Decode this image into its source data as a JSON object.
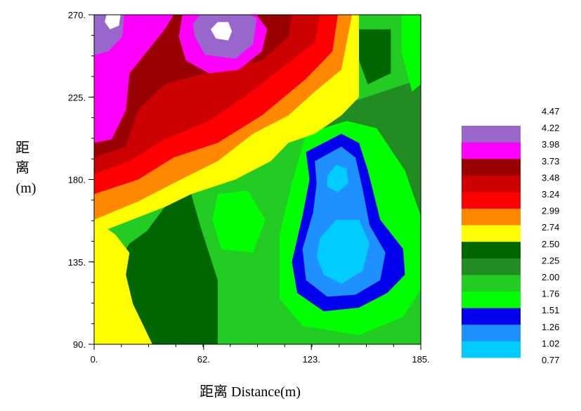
{
  "chart_data": {
    "type": "heatmap",
    "xlabel": "距离 Distance(m)",
    "ylabel_lines": [
      "距",
      "离",
      "(m)"
    ],
    "x_ticks": [
      "0.",
      "62.",
      "123.",
      "185."
    ],
    "x_tick_values": [
      0,
      62,
      123,
      185
    ],
    "y_ticks": [
      "90.",
      "135.",
      "180.",
      "225.",
      "270."
    ],
    "y_tick_values": [
      90,
      135,
      180,
      225,
      270
    ],
    "xlim": [
      0,
      185
    ],
    "ylim": [
      90,
      270
    ],
    "legend_levels": [
      "4.47",
      "4.22",
      "3.98",
      "3.73",
      "3.48",
      "3.24",
      "2.99",
      "2.74",
      "2.50",
      "2.25",
      "2.00",
      "1.76",
      "1.51",
      "1.26",
      "1.02",
      "0.77"
    ],
    "legend_colors": [
      "#9966cc",
      "#ff00ff",
      "#990000",
      "#cc0000",
      "#ff0000",
      "#ff8800",
      "#ffff00",
      "#006600",
      "#228b22",
      "#22cc22",
      "#00ff00",
      "#0000ee",
      "#1e90ff",
      "#00ccff",
      "#ffffff"
    ],
    "legend_placement": "right",
    "regions": [
      {
        "level": "1.76-2.00",
        "color": "#22cc22",
        "polygon": [
          [
            0,
            90
          ],
          [
            185,
            90
          ],
          [
            185,
            270
          ],
          [
            0,
            270
          ]
        ]
      },
      {
        "level": "2.00-2.25",
        "color": "#228b22",
        "polygon": [
          [
            145,
            222
          ],
          [
            185,
            235
          ],
          [
            185,
            155
          ],
          [
            176,
            135
          ],
          [
            170,
            110
          ],
          [
            150,
            100
          ],
          [
            140,
            108
          ],
          [
            140,
            150
          ],
          [
            132,
            175
          ],
          [
            125,
            205
          ]
        ]
      },
      {
        "level": "1.51-1.76",
        "color": "#00ff00",
        "polygon": [
          [
            174,
            270
          ],
          [
            185,
            270
          ],
          [
            185,
            232
          ],
          [
            180,
            228
          ],
          [
            174,
            250
          ]
        ]
      },
      {
        "level": "1.51-1.76",
        "color": "#00ff00",
        "polygon": [
          [
            120,
            205
          ],
          [
            143,
            212
          ],
          [
            160,
            208
          ],
          [
            176,
            185
          ],
          [
            185,
            160
          ],
          [
            185,
            120
          ],
          [
            175,
            105
          ],
          [
            150,
            95
          ],
          [
            118,
            100
          ],
          [
            105,
            115
          ],
          [
            105,
            150
          ],
          [
            112,
            178
          ]
        ]
      },
      {
        "level": "1.51-1.76",
        "color": "#00ff00",
        "polygon": [
          [
            70,
            172
          ],
          [
            87,
            174
          ],
          [
            97,
            158
          ],
          [
            90,
            140
          ],
          [
            72,
            142
          ],
          [
            67,
            158
          ]
        ]
      },
      {
        "level": "2.25-2.50",
        "color": "#006600",
        "polygon": [
          [
            0,
            90
          ],
          [
            70,
            90
          ],
          [
            70,
            125
          ],
          [
            60,
            155
          ],
          [
            55,
            172
          ],
          [
            40,
            165
          ],
          [
            30,
            152
          ],
          [
            20,
            145
          ],
          [
            10,
            130
          ],
          [
            0,
            122
          ]
        ]
      },
      {
        "level": "2.25-2.50",
        "color": "#006600",
        "polygon": [
          [
            150,
            262
          ],
          [
            168,
            262
          ],
          [
            168,
            238
          ],
          [
            155,
            232
          ],
          [
            150,
            245
          ]
        ]
      },
      {
        "level": "2.50-2.74",
        "color": "#ffff00",
        "polygon": [
          [
            0,
            90
          ],
          [
            33,
            90
          ],
          [
            28,
            100
          ],
          [
            22,
            112
          ],
          [
            18,
            128
          ],
          [
            20,
            140
          ],
          [
            12,
            150
          ],
          [
            0,
            158
          ]
        ]
      },
      {
        "level": "2.50-2.74",
        "color": "#ffff00",
        "polygon": [
          [
            0,
            150
          ],
          [
            40,
            165
          ],
          [
            55,
            172
          ],
          [
            80,
            180
          ],
          [
            100,
            190
          ],
          [
            110,
            200
          ],
          [
            125,
            205
          ],
          [
            140,
            215
          ],
          [
            150,
            225
          ],
          [
            150,
            270
          ],
          [
            0,
            270
          ]
        ]
      },
      {
        "level": "2.74-2.99",
        "color": "#ff8800",
        "polygon": [
          [
            0,
            158
          ],
          [
            25,
            168
          ],
          [
            45,
            178
          ],
          [
            70,
            190
          ],
          [
            90,
            205
          ],
          [
            110,
            215
          ],
          [
            125,
            228
          ],
          [
            140,
            240
          ],
          [
            146,
            270
          ],
          [
            0,
            270
          ]
        ]
      },
      {
        "level": "2.99-3.24",
        "color": "#ff0000",
        "polygon": [
          [
            0,
            172
          ],
          [
            25,
            180
          ],
          [
            45,
            192
          ],
          [
            70,
            200
          ],
          [
            95,
            215
          ],
          [
            120,
            235
          ],
          [
            135,
            250
          ],
          [
            138,
            270
          ],
          [
            0,
            270
          ]
        ]
      },
      {
        "level": "3.24-3.48",
        "color": "#cc0000",
        "polygon": [
          [
            0,
            183
          ],
          [
            20,
            190
          ],
          [
            40,
            202
          ],
          [
            65,
            212
          ],
          [
            85,
            225
          ],
          [
            105,
            240
          ],
          [
            125,
            255
          ],
          [
            128,
            270
          ],
          [
            0,
            270
          ]
        ]
      },
      {
        "level": "3.48-3.73",
        "color": "#990000",
        "polygon": [
          [
            0,
            192
          ],
          [
            18,
            198
          ],
          [
            25,
            218
          ],
          [
            40,
            232
          ],
          [
            70,
            240
          ],
          [
            95,
            245
          ],
          [
            110,
            258
          ],
          [
            112,
            270
          ],
          [
            0,
            270
          ]
        ]
      },
      {
        "level": "3.73-3.98",
        "color": "#ff00ff",
        "polygon": [
          [
            0,
            200
          ],
          [
            10,
            202
          ],
          [
            18,
            218
          ],
          [
            20,
            238
          ],
          [
            30,
            250
          ],
          [
            40,
            262
          ],
          [
            45,
            270
          ],
          [
            0,
            270
          ]
        ]
      },
      {
        "level": "3.73-3.98",
        "color": "#ff00ff",
        "polygon": [
          [
            52,
            245
          ],
          [
            65,
            238
          ],
          [
            82,
            240
          ],
          [
            95,
            250
          ],
          [
            98,
            262
          ],
          [
            92,
            270
          ],
          [
            50,
            270
          ],
          [
            48,
            258
          ]
        ]
      },
      {
        "level": "3.98-4.22",
        "color": "#9966cc",
        "polygon": [
          [
            0,
            248
          ],
          [
            8,
            250
          ],
          [
            16,
            258
          ],
          [
            17,
            270
          ],
          [
            0,
            270
          ]
        ]
      },
      {
        "level": "3.98-4.22",
        "color": "#9966cc",
        "polygon": [
          [
            57,
            258
          ],
          [
            63,
            248
          ],
          [
            80,
            246
          ],
          [
            90,
            254
          ],
          [
            92,
            268
          ],
          [
            88,
            270
          ],
          [
            60,
            270
          ],
          [
            56,
            265
          ]
        ]
      },
      {
        "level": "4.22-4.47",
        "color": "#ffffff",
        "polygon": [
          [
            7,
            270
          ],
          [
            15,
            270
          ],
          [
            14,
            264
          ],
          [
            9,
            262
          ],
          [
            6,
            266
          ]
        ]
      },
      {
        "level": "4.22-4.47",
        "color": "#ffffff",
        "polygon": [
          [
            66,
            262
          ],
          [
            69,
            257
          ],
          [
            76,
            256
          ],
          [
            78,
            261
          ],
          [
            76,
            266
          ],
          [
            70,
            266
          ]
        ]
      },
      {
        "level": "1.26-1.51",
        "color": "#0000ee",
        "polygon": [
          [
            120,
            195
          ],
          [
            140,
            205
          ],
          [
            150,
            200
          ],
          [
            155,
            185
          ],
          [
            162,
            158
          ],
          [
            175,
            142
          ],
          [
            176,
            128
          ],
          [
            166,
            118
          ],
          [
            150,
            110
          ],
          [
            130,
            108
          ],
          [
            115,
            118
          ],
          [
            112,
            135
          ],
          [
            118,
            160
          ],
          [
            122,
            180
          ]
        ]
      },
      {
        "level": "1.02-1.26",
        "color": "#1e90ff",
        "polygon": [
          [
            125,
            190
          ],
          [
            140,
            198
          ],
          [
            148,
            192
          ],
          [
            152,
            175
          ],
          [
            156,
            155
          ],
          [
            165,
            140
          ],
          [
            162,
            125
          ],
          [
            148,
            117
          ],
          [
            132,
            116
          ],
          [
            120,
            125
          ],
          [
            118,
            142
          ],
          [
            124,
            162
          ],
          [
            126,
            178
          ]
        ]
      },
      {
        "level": "0.77-1.02",
        "color": "#00ccff",
        "polygon": [
          [
            128,
            148
          ],
          [
            137,
            158
          ],
          [
            150,
            158
          ],
          [
            156,
            145
          ],
          [
            152,
            130
          ],
          [
            140,
            123
          ],
          [
            130,
            128
          ],
          [
            126,
            138
          ]
        ]
      },
      {
        "level": "0.77-1.02",
        "color": "#00ccff",
        "polygon": [
          [
            132,
            182
          ],
          [
            137,
            188
          ],
          [
            143,
            186
          ],
          [
            144,
            178
          ],
          [
            138,
            173
          ],
          [
            132,
            176
          ]
        ]
      }
    ]
  }
}
